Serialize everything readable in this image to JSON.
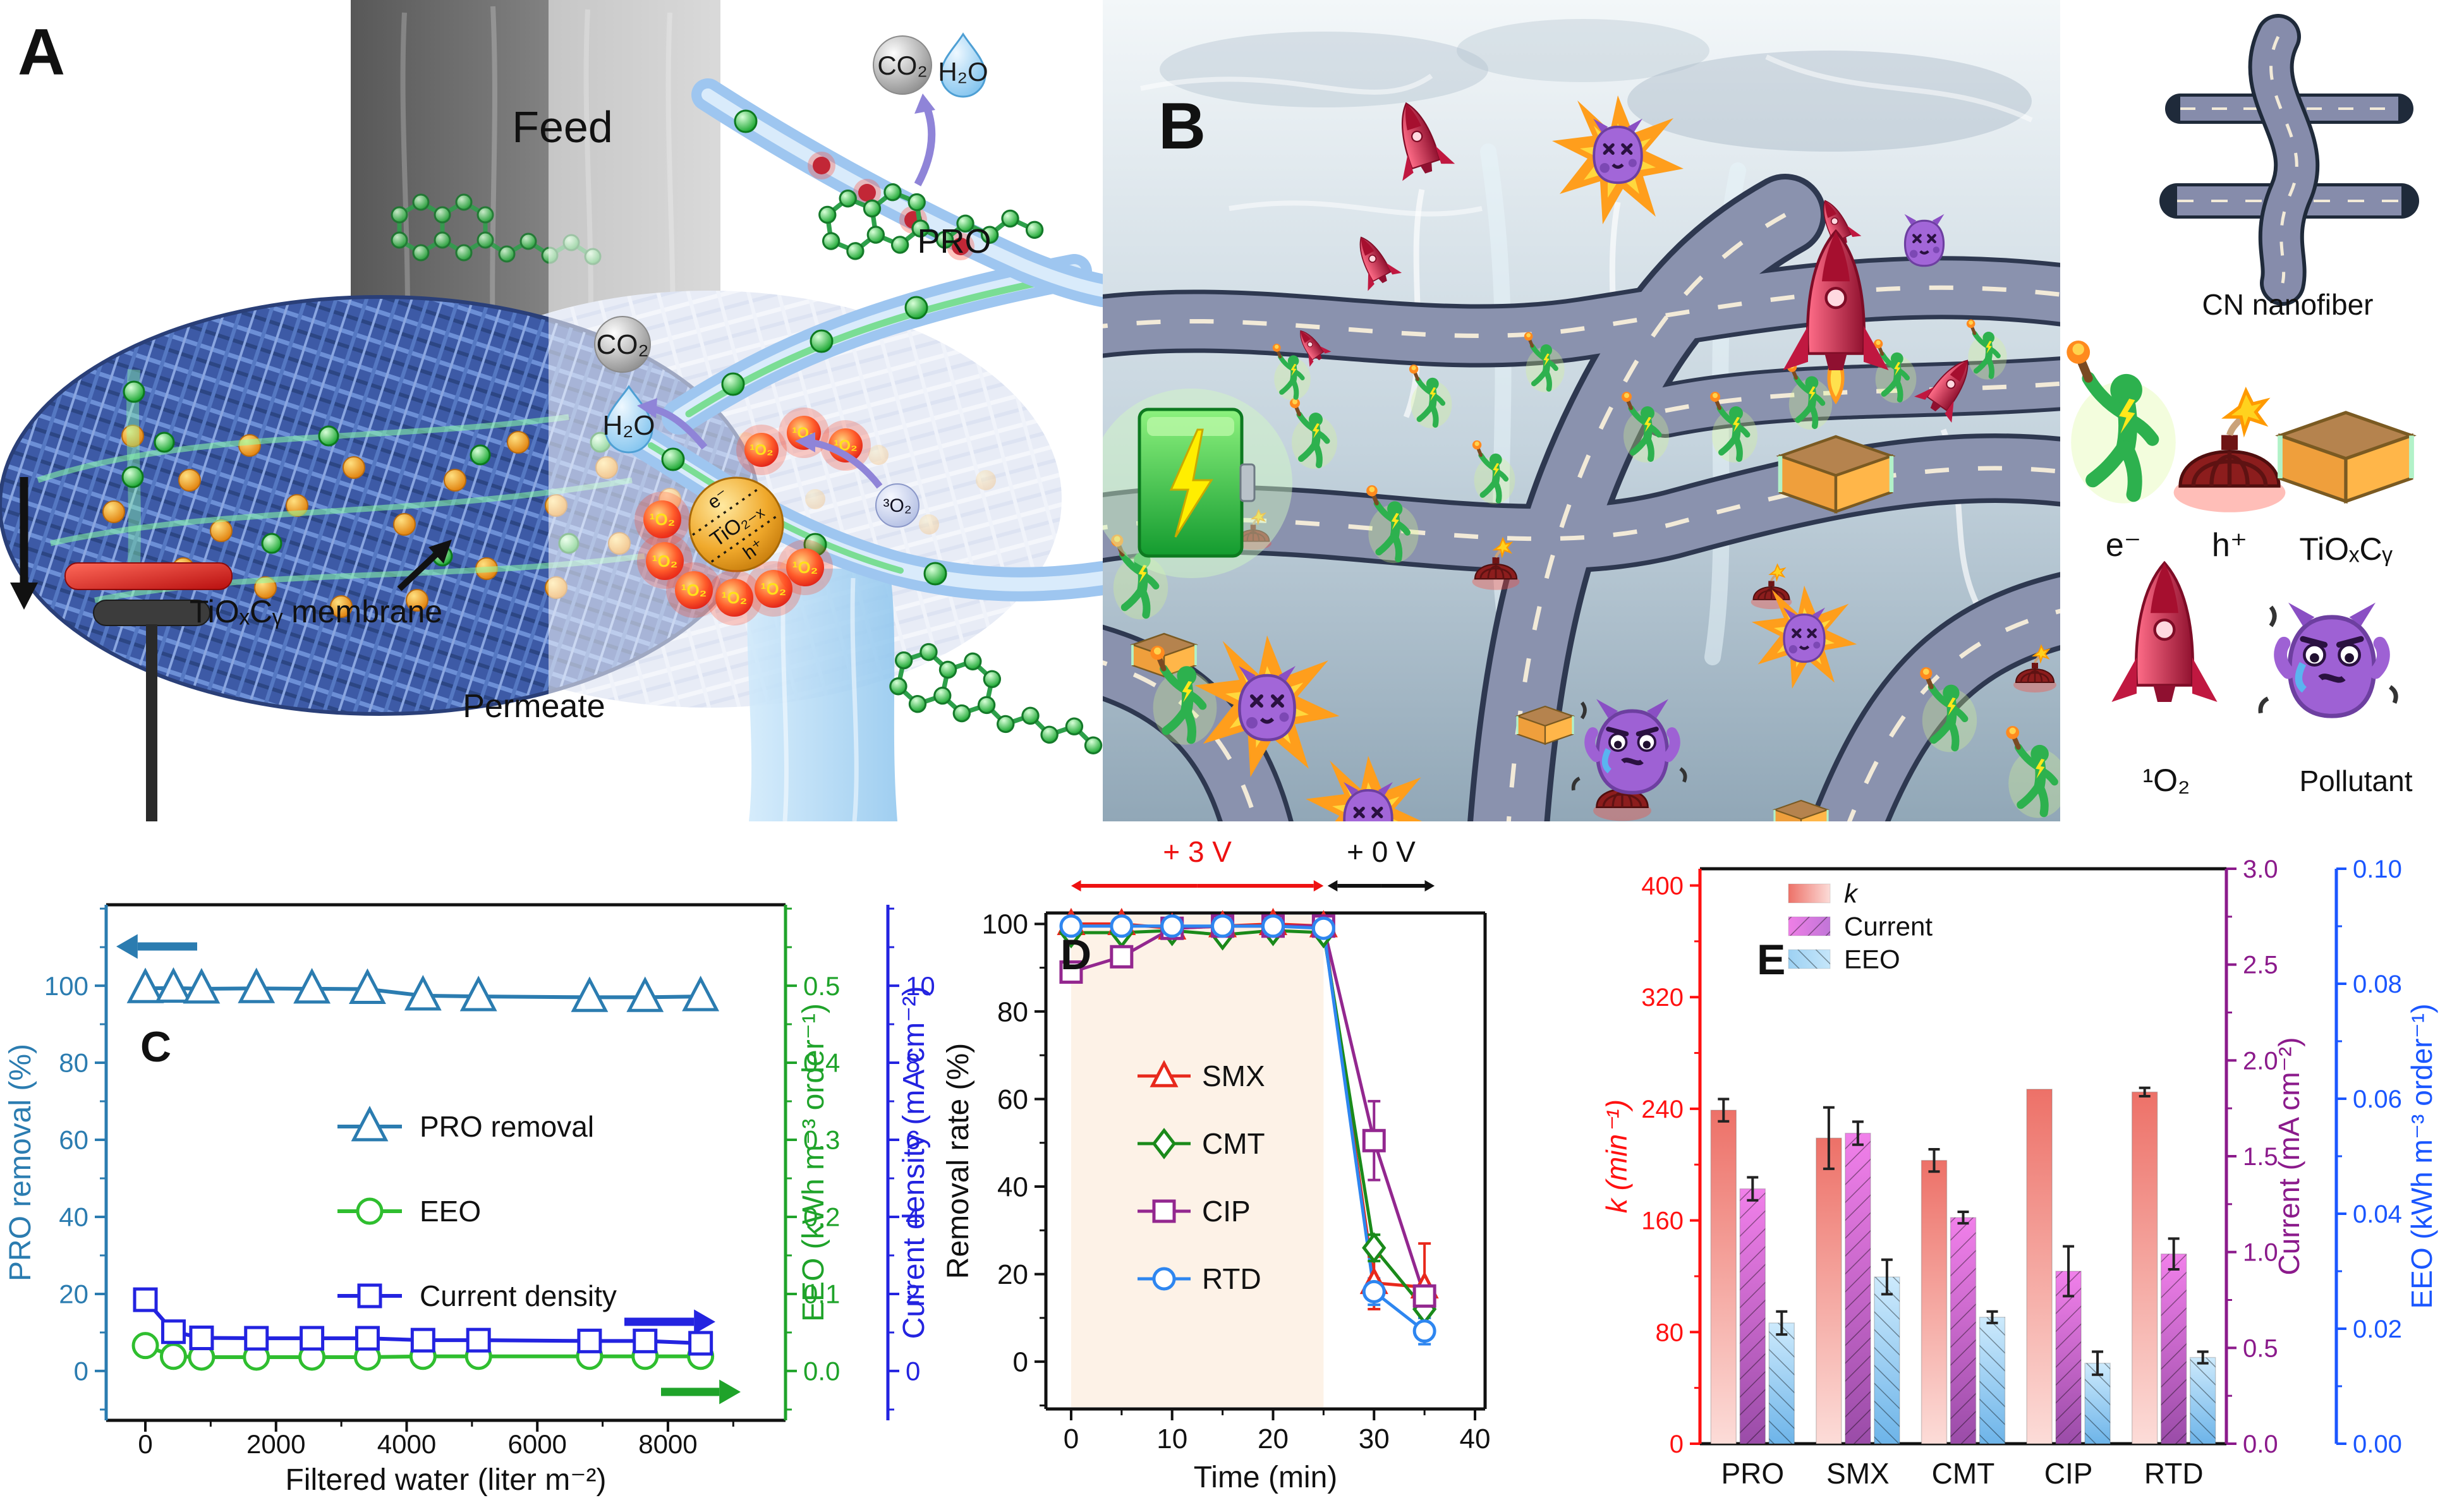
{
  "figure_colors": {
    "teal": "#2b7cb0",
    "green_axis": "#1fa32a",
    "blue_axis": "#2323e0",
    "smx_red": "#e8291c",
    "cmt_green": "#1a8a1a",
    "cip_purple": "#93278f",
    "rtd_blue": "#2e86f0",
    "k_red": "#ff1111",
    "current_purple": "#8b1a8b",
    "eeo_blue": "#1a56ff",
    "shade_peach": "#fdf2e7",
    "road_gray": "#8a92ae",
    "battery_green": "#2fc43a"
  },
  "panels": {
    "A": {
      "label": "A",
      "feed": "Feed",
      "permeate": "Permeate",
      "membrane": "TiOₓCᵧ membrane",
      "co2": "CO₂",
      "h2o": "H₂O",
      "pro": "PRO",
      "tio2x": "TiO₂₋ₓ",
      "electron": "e⁻",
      "hole": "h⁺",
      "singlet_o2": "¹O₂",
      "triplet_o2": "³O₂"
    },
    "B": {
      "label": "B",
      "legend": {
        "cn_nanofiber": "CN nanofiber",
        "electron": "e⁻",
        "hole": "h⁺",
        "tioxcy": "TiOₓCᵧ",
        "singlet_o2": "¹O₂",
        "pollutant": "Pollutant"
      }
    }
  },
  "chart_data": [
    {
      "id": "C",
      "type": "line",
      "panel_label": "C",
      "xlabel": "Filtered water (liter m⁻²)",
      "xlim": [
        -600,
        9800
      ],
      "x_ticks": [
        0,
        2000,
        4000,
        6000,
        8000
      ],
      "x_minor": 1000,
      "axes": [
        {
          "side": "left",
          "label": "PRO removal (%)",
          "color": "#2b7cb0",
          "ticks": [
            "0",
            "20",
            "40",
            "60",
            "80",
            "100"
          ],
          "tick_vals": [
            0,
            20,
            40,
            60,
            80,
            100
          ],
          "minor": 10,
          "lim": [
            -12.8,
            121
          ]
        },
        {
          "side": "right",
          "label": "EEO (kWh m⁻³ order⁻¹)",
          "color": "#1fa32a",
          "ticks": [
            "0.0",
            "0.1",
            "0.2",
            "0.3",
            "0.4",
            "0.5"
          ],
          "tick_vals": [
            0,
            0.1,
            0.2,
            0.3,
            0.4,
            0.5
          ],
          "minor": 0.05,
          "lim": [
            -0.064,
            0.605
          ]
        },
        {
          "side": "right2",
          "label": "Current density (mA cm⁻²)",
          "color": "#2323e0",
          "ticks": [
            "0",
            "2",
            "4",
            "6",
            "8",
            "10"
          ],
          "tick_vals": [
            0,
            2,
            4,
            6,
            8,
            10
          ],
          "minor": 1,
          "lim": [
            -1.28,
            12.1
          ]
        }
      ],
      "x": [
        0,
        430,
        860,
        1700,
        2550,
        3400,
        4250,
        5100,
        6800,
        7650,
        8500
      ],
      "series": [
        {
          "name": "PRO removal",
          "axis": 0,
          "marker": "triangle",
          "color": "#2b7cb0",
          "y": [
            99.3,
            99.4,
            99.2,
            99.3,
            99.2,
            99.1,
            97.4,
            97.2,
            97.0,
            97.0,
            97.2
          ]
        },
        {
          "name": "EEO",
          "axis": 1,
          "marker": "circle",
          "color": "#2fbe2f",
          "y": [
            0.033,
            0.019,
            0.018,
            0.018,
            0.018,
            0.018,
            0.019,
            0.019,
            0.019,
            0.019,
            0.019
          ]
        },
        {
          "name": "Current density",
          "axis": 2,
          "marker": "square",
          "color": "#2323e0",
          "y": [
            1.85,
            1.02,
            0.86,
            0.85,
            0.85,
            0.85,
            0.8,
            0.8,
            0.78,
            0.78,
            0.72
          ]
        }
      ]
    },
    {
      "id": "D",
      "type": "line",
      "panel_label": "D",
      "xlabel": "Time (min)",
      "xlim": [
        -2.5,
        41
      ],
      "x_ticks": [
        0,
        10,
        20,
        30,
        40
      ],
      "x_minor": 5,
      "axes": [
        {
          "side": "left",
          "label": "Removal rate (%)",
          "color": "#111111",
          "ticks": [
            "0",
            "20",
            "40",
            "60",
            "80",
            "100"
          ],
          "tick_vals": [
            0,
            20,
            40,
            60,
            80,
            100
          ],
          "minor": 10,
          "lim": [
            -10.8,
            102.5
          ]
        }
      ],
      "shade": {
        "x0": 0,
        "x1": 25,
        "color": "#fdf2e7"
      },
      "annotations": [
        {
          "type": "dblarrow",
          "x0": 0,
          "x1": 25,
          "label": "+ 3 V",
          "color": "#ee1111"
        },
        {
          "type": "dblarrow",
          "x0": 25.4,
          "x1": 36,
          "label": "+ 0 V",
          "color": "#111111"
        }
      ],
      "x": [
        0,
        5,
        10,
        15,
        20,
        25,
        30,
        35
      ],
      "series": [
        {
          "name": "SMX",
          "axis": 0,
          "marker": "triangle",
          "color": "#e8291c",
          "y": [
            100,
            100,
            99,
            99.5,
            100,
            99.5,
            18,
            17
          ],
          "err": [
            0,
            0,
            0,
            0,
            0,
            0,
            6,
            10
          ]
        },
        {
          "name": "CMT",
          "axis": 0,
          "marker": "diamond",
          "color": "#1a8a1a",
          "y": [
            98,
            98,
            98.5,
            97.5,
            98.5,
            98,
            26,
            12
          ],
          "err": [
            0,
            0,
            0,
            0,
            0,
            0,
            3,
            2
          ]
        },
        {
          "name": "CIP",
          "axis": 0,
          "marker": "square",
          "color": "#93278f",
          "y": [
            89,
            92.5,
            99,
            99.5,
            99.5,
            99.5,
            50.5,
            15
          ],
          "err": [
            2,
            0,
            0,
            0,
            0,
            0,
            9,
            2
          ]
        },
        {
          "name": "RTD",
          "axis": 0,
          "marker": "circle",
          "color": "#2e86f0",
          "y": [
            99.5,
            99.5,
            99.5,
            99.5,
            99.5,
            99,
            16,
            7
          ],
          "err": [
            0,
            0,
            0,
            0,
            0,
            0,
            3,
            3
          ]
        }
      ]
    },
    {
      "id": "E",
      "type": "bar",
      "panel_label": "E",
      "categories": [
        "PRO",
        "SMX",
        "CMT",
        "CIP",
        "RTD"
      ],
      "axes": [
        {
          "side": "left",
          "label": "k (min⁻¹)",
          "color": "#ff1111",
          "ticks": [
            "0",
            "80",
            "160",
            "240",
            "320",
            "400"
          ],
          "tick_vals": [
            0,
            80,
            160,
            240,
            320,
            400
          ],
          "minor": 40,
          "lim": [
            0,
            412
          ]
        },
        {
          "side": "right",
          "label": "Current (mA cm⁻²)",
          "color": "#8b1a8b",
          "ticks": [
            "0.0",
            "0.5",
            "1.0",
            "1.5",
            "2.0",
            "2.5",
            "3.0"
          ],
          "tick_vals": [
            0,
            0.5,
            1,
            1.5,
            2,
            2.5,
            3
          ],
          "minor": 0.25,
          "lim": [
            0,
            3.0
          ]
        },
        {
          "side": "right2",
          "label": "EEO (kWh m⁻³ order⁻¹)",
          "color": "#1a56ff",
          "ticks": [
            "0.00",
            "0.02",
            "0.04",
            "0.06",
            "0.08",
            "0.10"
          ],
          "tick_vals": [
            0,
            0.02,
            0.04,
            0.06,
            0.08,
            0.1
          ],
          "minor": 0.01,
          "lim": [
            0,
            0.1
          ]
        }
      ],
      "series": [
        {
          "name": "k",
          "axis": 0,
          "fill": "kGrad",
          "hatch": "",
          "values": [
            239,
            219,
            203,
            254,
            252
          ],
          "errors": [
            8,
            22,
            8,
            0,
            3
          ]
        },
        {
          "name": "Current",
          "axis": 1,
          "fill": "curGrad",
          "hatch": "fwd",
          "values": [
            1.33,
            1.62,
            1.18,
            0.9,
            0.99
          ],
          "errors": [
            0.06,
            0.06,
            0.03,
            0.13,
            0.08
          ]
        },
        {
          "name": "EEO",
          "axis": 2,
          "fill": "eeoGrad",
          "hatch": "bwd",
          "values": [
            0.021,
            0.029,
            0.022,
            0.014,
            0.015
          ],
          "errors": [
            0.002,
            0.003,
            0.001,
            0.002,
            0.001
          ]
        }
      ]
    }
  ]
}
